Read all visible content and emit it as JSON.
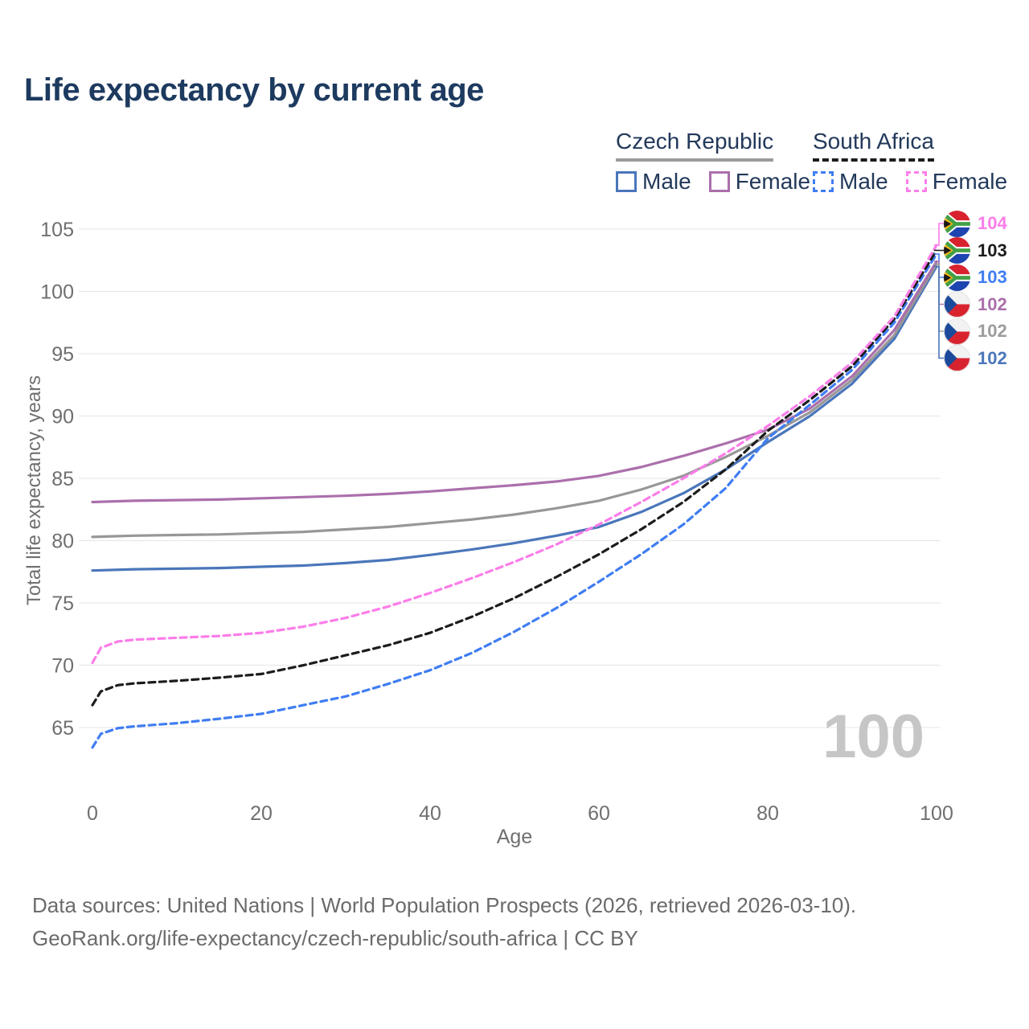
{
  "title": "Life expectancy by current age",
  "legend": {
    "groups": [
      {
        "label": "Czech Republic",
        "line_style": "solid",
        "underline_color": "#9a9a9a",
        "items": [
          {
            "label": "Male",
            "color": "#4a76ba",
            "series": "czech_male"
          },
          {
            "label": "Female",
            "color": "#ab6fab",
            "series": "czech_female"
          }
        ]
      },
      {
        "label": "South Africa",
        "line_style": "dashed",
        "underline_color": "#1c1c1c",
        "items": [
          {
            "label": "Male",
            "color": "#3f7df2",
            "series": "sa_male"
          },
          {
            "label": "Female",
            "color": "#fb7de9",
            "series": "sa_female"
          }
        ]
      }
    ]
  },
  "watermark": "100",
  "footer": {
    "line1": "Data sources: United Nations | World Population Prospects (2026, retrieved 2026-03-10).",
    "line2": "GeoRank.org/life-expectancy/czech-republic/south-africa | CC BY"
  },
  "end_labels": [
    {
      "text": "104",
      "color": "#fb7de9",
      "flag": "south-africa",
      "series": "sa_female"
    },
    {
      "text": "103",
      "color": "#1c1c1c",
      "flag": "south-africa",
      "series": "sa_total"
    },
    {
      "text": "103",
      "color": "#3f7df2",
      "flag": "south-africa",
      "series": "sa_male"
    },
    {
      "text": "102",
      "color": "#ab6fab",
      "flag": "czech-republic",
      "series": "czech_female"
    },
    {
      "text": "102",
      "color": "#9c9c9c",
      "flag": "czech-republic",
      "series": "czech_total"
    },
    {
      "text": "102",
      "color": "#4a76ba",
      "flag": "czech-republic",
      "series": "czech_male"
    }
  ],
  "colors": {
    "title": "#1d3a5f",
    "tick_label": "#6f6f6f",
    "gridline": "#e9e9e9",
    "watermark": "#c6c6c6",
    "footer": "#6b6b6b"
  },
  "chart_data": {
    "type": "line",
    "title": "Life expectancy by current age",
    "xlabel": "Age",
    "ylabel": "Total life expectancy, years",
    "x_ticks": [
      0,
      20,
      40,
      60,
      80,
      100
    ],
    "y_ticks": [
      65,
      70,
      75,
      80,
      85,
      90,
      95,
      100,
      105
    ],
    "xlim": [
      0,
      100
    ],
    "ylim": [
      63,
      105
    ],
    "grid": "horizontal",
    "legend_position": "top-right",
    "series": [
      {
        "id": "czech_male",
        "name": "Czech Republic Male",
        "style": "solid",
        "color": "#4a76ba",
        "points": [
          [
            0,
            77.6
          ],
          [
            5,
            77.7
          ],
          [
            10,
            77.75
          ],
          [
            15,
            77.8
          ],
          [
            20,
            77.9
          ],
          [
            25,
            78.0
          ],
          [
            30,
            78.2
          ],
          [
            35,
            78.45
          ],
          [
            40,
            78.85
          ],
          [
            45,
            79.3
          ],
          [
            50,
            79.8
          ],
          [
            55,
            80.4
          ],
          [
            60,
            81.1
          ],
          [
            65,
            82.3
          ],
          [
            70,
            83.8
          ],
          [
            75,
            85.7
          ],
          [
            80,
            87.9
          ],
          [
            85,
            90.0
          ],
          [
            90,
            92.6
          ],
          [
            95,
            96.2
          ],
          [
            100,
            102.0
          ]
        ]
      },
      {
        "id": "czech_total",
        "name": "Czech Republic Both sexes",
        "style": "solid",
        "color": "#979797",
        "points": [
          [
            0,
            80.3
          ],
          [
            5,
            80.4
          ],
          [
            10,
            80.45
          ],
          [
            15,
            80.5
          ],
          [
            20,
            80.6
          ],
          [
            25,
            80.7
          ],
          [
            30,
            80.9
          ],
          [
            35,
            81.1
          ],
          [
            40,
            81.4
          ],
          [
            45,
            81.7
          ],
          [
            50,
            82.1
          ],
          [
            55,
            82.6
          ],
          [
            60,
            83.2
          ],
          [
            65,
            84.1
          ],
          [
            70,
            85.2
          ],
          [
            75,
            86.7
          ],
          [
            80,
            88.4
          ],
          [
            85,
            90.3
          ],
          [
            90,
            92.9
          ],
          [
            95,
            96.5
          ],
          [
            100,
            102.2
          ]
        ]
      },
      {
        "id": "czech_female",
        "name": "Czech Republic Female",
        "style": "solid",
        "color": "#ab6fab",
        "points": [
          [
            0,
            83.1
          ],
          [
            5,
            83.2
          ],
          [
            10,
            83.25
          ],
          [
            15,
            83.3
          ],
          [
            20,
            83.4
          ],
          [
            25,
            83.5
          ],
          [
            30,
            83.6
          ],
          [
            35,
            83.75
          ],
          [
            40,
            83.95
          ],
          [
            45,
            84.2
          ],
          [
            50,
            84.45
          ],
          [
            55,
            84.75
          ],
          [
            60,
            85.2
          ],
          [
            65,
            85.9
          ],
          [
            70,
            86.8
          ],
          [
            75,
            87.8
          ],
          [
            80,
            88.9
          ],
          [
            85,
            90.6
          ],
          [
            90,
            93.2
          ],
          [
            95,
            96.9
          ],
          [
            100,
            102.4
          ]
        ]
      },
      {
        "id": "sa_male",
        "name": "South Africa Male",
        "style": "dashed",
        "color": "#3f7df2",
        "points": [
          [
            0,
            63.4
          ],
          [
            1,
            64.5
          ],
          [
            3,
            64.95
          ],
          [
            5,
            65.1
          ],
          [
            10,
            65.35
          ],
          [
            15,
            65.7
          ],
          [
            20,
            66.1
          ],
          [
            25,
            66.8
          ],
          [
            30,
            67.5
          ],
          [
            35,
            68.5
          ],
          [
            40,
            69.6
          ],
          [
            45,
            71.0
          ],
          [
            50,
            72.7
          ],
          [
            55,
            74.6
          ],
          [
            60,
            76.7
          ],
          [
            65,
            78.9
          ],
          [
            70,
            81.3
          ],
          [
            75,
            84.2
          ],
          [
            80,
            88.2
          ],
          [
            85,
            90.9
          ],
          [
            90,
            93.7
          ],
          [
            95,
            97.5
          ],
          [
            100,
            103.0
          ]
        ]
      },
      {
        "id": "sa_total",
        "name": "South Africa Both sexes",
        "style": "dashed",
        "color": "#1c1c1c",
        "points": [
          [
            0,
            66.8
          ],
          [
            1,
            67.9
          ],
          [
            3,
            68.4
          ],
          [
            5,
            68.55
          ],
          [
            10,
            68.75
          ],
          [
            15,
            69.0
          ],
          [
            20,
            69.3
          ],
          [
            25,
            70.0
          ],
          [
            30,
            70.8
          ],
          [
            35,
            71.6
          ],
          [
            40,
            72.6
          ],
          [
            45,
            73.9
          ],
          [
            50,
            75.4
          ],
          [
            55,
            77.1
          ],
          [
            60,
            78.9
          ],
          [
            65,
            80.9
          ],
          [
            70,
            83.1
          ],
          [
            75,
            85.7
          ],
          [
            80,
            88.8
          ],
          [
            85,
            91.3
          ],
          [
            90,
            94.0
          ],
          [
            95,
            97.8
          ],
          [
            100,
            103.3
          ]
        ]
      },
      {
        "id": "sa_female",
        "name": "South Africa Female",
        "style": "dashed",
        "color": "#fb7de9",
        "points": [
          [
            0,
            70.2
          ],
          [
            1,
            71.4
          ],
          [
            3,
            71.9
          ],
          [
            5,
            72.05
          ],
          [
            10,
            72.2
          ],
          [
            15,
            72.35
          ],
          [
            20,
            72.6
          ],
          [
            25,
            73.1
          ],
          [
            30,
            73.8
          ],
          [
            35,
            74.7
          ],
          [
            40,
            75.8
          ],
          [
            45,
            77.0
          ],
          [
            50,
            78.3
          ],
          [
            55,
            79.7
          ],
          [
            60,
            81.3
          ],
          [
            65,
            83.1
          ],
          [
            70,
            85.0
          ],
          [
            75,
            87.0
          ],
          [
            80,
            89.2
          ],
          [
            85,
            91.6
          ],
          [
            90,
            94.3
          ],
          [
            95,
            98.0
          ],
          [
            100,
            103.7
          ]
        ]
      }
    ]
  }
}
